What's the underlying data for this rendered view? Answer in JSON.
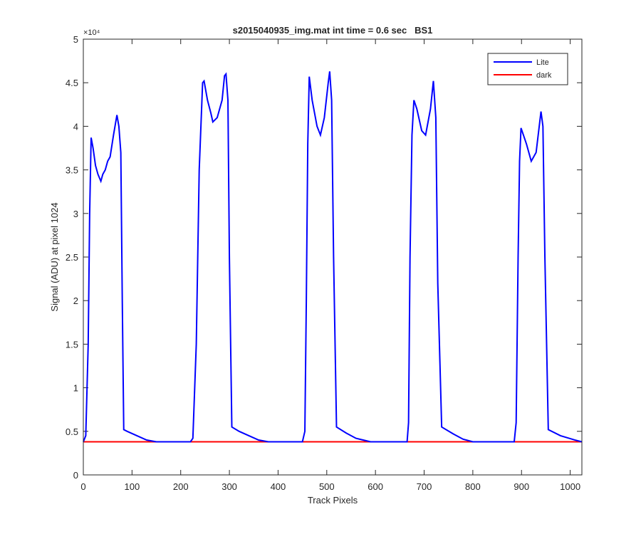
{
  "chart_data": {
    "type": "line",
    "title": "s2015040935_img.mat int time = 0.6 sec   BS1",
    "x_label": "Track Pixels",
    "y_label": "Signal (ADU) at pixel 1024",
    "y_multiplier": "×10⁴",
    "xlim": [
      0,
      1024
    ],
    "xticks": [
      0,
      100,
      200,
      300,
      400,
      500,
      600,
      700,
      800,
      900,
      1000
    ],
    "ylim": [
      0,
      5
    ],
    "yticks": [
      0,
      0.5,
      1,
      1.5,
      2,
      2.5,
      3,
      3.5,
      4,
      4.5,
      5
    ],
    "legend": "upper right",
    "series": [
      {
        "name": "Lite",
        "color": "#0000ff",
        "x": [
          0,
          5,
          10,
          13,
          16,
          20,
          25,
          30,
          36,
          40,
          45,
          50,
          55,
          62,
          69,
          73,
          77,
          80,
          83,
          90,
          110,
          130,
          150,
          220,
          225,
          232,
          238,
          245,
          248,
          255,
          262,
          266,
          275,
          285,
          290,
          293,
          297,
          300,
          305,
          320,
          340,
          360,
          380,
          450,
          455,
          458,
          461,
          464,
          470,
          480,
          487,
          495,
          503,
          506,
          510,
          514,
          520,
          540,
          560,
          590,
          665,
          668,
          671,
          675,
          679,
          685,
          695,
          703,
          713,
          719,
          724,
          728,
          736,
          760,
          780,
          800,
          885,
          889,
          893,
          896,
          899,
          910,
          920,
          930,
          940,
          944,
          948,
          955,
          980,
          1010,
          1024
        ],
        "values": [
          0.38,
          0.45,
          1.5,
          3.0,
          3.87,
          3.75,
          3.55,
          3.45,
          3.37,
          3.45,
          3.5,
          3.6,
          3.65,
          3.9,
          4.13,
          4.0,
          3.7,
          2.0,
          0.52,
          0.5,
          0.45,
          0.4,
          0.38,
          0.38,
          0.42,
          1.5,
          3.5,
          4.5,
          4.52,
          4.3,
          4.15,
          4.05,
          4.1,
          4.3,
          4.58,
          4.6,
          4.3,
          2.5,
          0.55,
          0.5,
          0.45,
          0.4,
          0.38,
          0.38,
          0.5,
          2.0,
          3.8,
          4.57,
          4.3,
          4.0,
          3.9,
          4.1,
          4.5,
          4.63,
          4.3,
          2.5,
          0.55,
          0.48,
          0.42,
          0.38,
          0.38,
          0.6,
          2.5,
          3.9,
          4.3,
          4.2,
          3.95,
          3.9,
          4.2,
          4.52,
          4.1,
          2.2,
          0.55,
          0.47,
          0.41,
          0.38,
          0.38,
          0.6,
          2.5,
          3.6,
          3.98,
          3.8,
          3.6,
          3.7,
          4.17,
          4.0,
          2.5,
          0.52,
          0.45,
          0.4,
          0.38
        ]
      },
      {
        "name": "dark",
        "color": "#ff0000",
        "x": [
          0,
          1024
        ],
        "values": [
          0.38,
          0.38
        ]
      }
    ]
  }
}
